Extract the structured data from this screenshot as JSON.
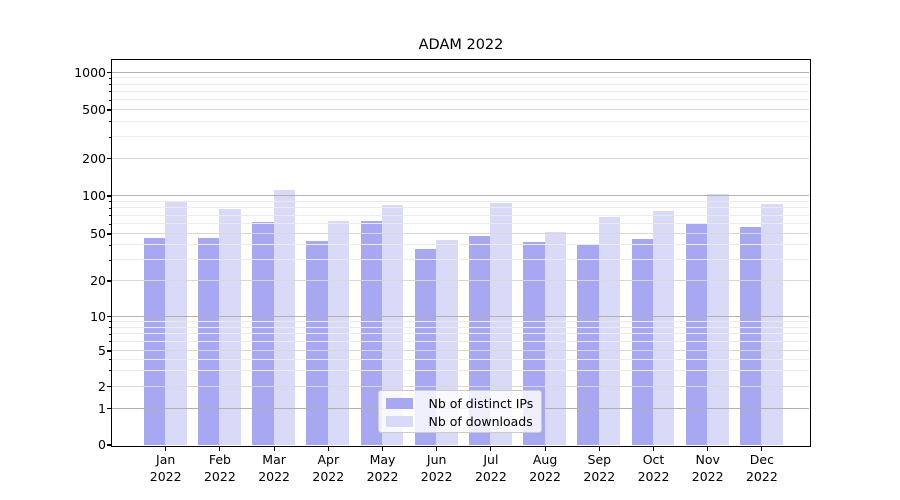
{
  "figure": {
    "background": "#ffffff"
  },
  "chart_data": {
    "type": "bar",
    "title": "ADAM 2022",
    "categories": [
      "Jan",
      "Feb",
      "Mar",
      "Apr",
      "May",
      "Jun",
      "Jul",
      "Aug",
      "Sep",
      "Oct",
      "Nov",
      "Dec"
    ],
    "category_year": "2022",
    "series": [
      {
        "name": "Nb of distinct IPs",
        "color": "#a8a8f2",
        "values": [
          46,
          46,
          62,
          43,
          63,
          37,
          48,
          42,
          40,
          45,
          61,
          56
        ]
      },
      {
        "name": "Nb of downloads",
        "color": "#d9d9f8",
        "values": [
          90,
          78,
          110,
          63,
          84,
          44,
          88,
          51,
          67,
          76,
          102,
          85
        ]
      }
    ],
    "x_axis": {
      "tick_labels_line2": "2022"
    },
    "y_axis": {
      "scale": "symlog",
      "ticks": [
        0,
        1,
        2,
        5,
        10,
        20,
        50,
        100,
        200,
        500,
        1000
      ],
      "ylim": [
        0,
        1200
      ]
    },
    "legend": {
      "position": "lower center",
      "entries": [
        "Nb of distinct IPs",
        "Nb of downloads"
      ]
    },
    "grid": {
      "decade_color": "#b0b0b0",
      "major_color": "#d7d7d7",
      "minor_color": "#ebebeb"
    },
    "axis_color": "#000000"
  }
}
